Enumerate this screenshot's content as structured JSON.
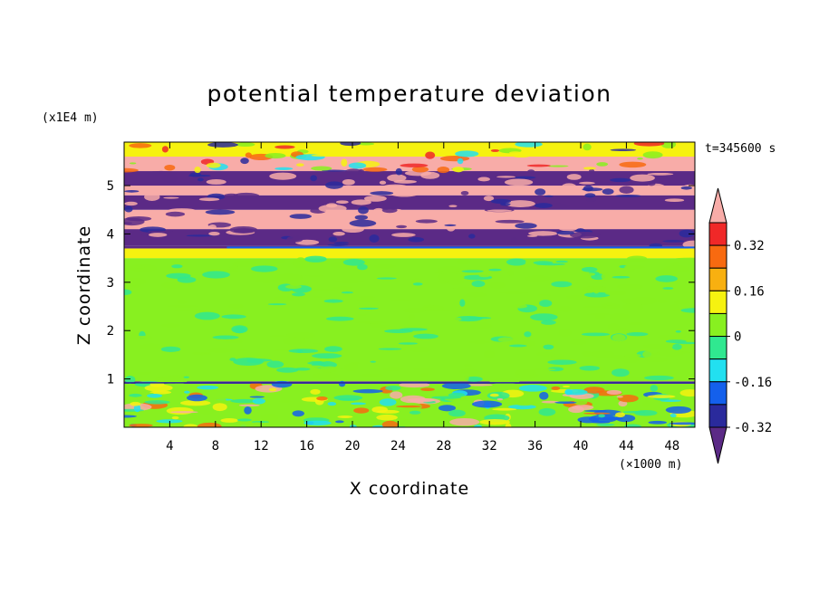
{
  "chart_data": {
    "type": "heatmap",
    "title": "potential temperature deviation",
    "xlabel": "X coordinate",
    "ylabel": "Z coordinate",
    "x_unit_label": "(×1000 m)",
    "y_unit_label": "(x1E4 m)",
    "time_label": "t=345600 s",
    "x_ticks": [
      "4",
      "8",
      "12",
      "16",
      "20",
      "24",
      "28",
      "32",
      "36",
      "40",
      "44",
      "48"
    ],
    "y_ticks": [
      "1",
      "2",
      "3",
      "4",
      "5"
    ],
    "xlim": [
      0,
      50
    ],
    "ylim": [
      0,
      5.9
    ],
    "colorbar": {
      "labels": [
        "0.32",
        "0.16",
        "0",
        "-0.16",
        "-0.32"
      ],
      "levels": [
        -0.4,
        -0.32,
        -0.24,
        -0.16,
        -0.08,
        0,
        0.08,
        0.16,
        0.24,
        0.32,
        0.4
      ],
      "colors": [
        "#5b2a86",
        "#2a2a9c",
        "#1460ec",
        "#22e0f0",
        "#30e890",
        "#88f020",
        "#f6f210",
        "#f8b010",
        "#f86a10",
        "#f02828",
        "#f8aca8"
      ],
      "extend": "both"
    },
    "bands": [
      {
        "z0": 0.0,
        "z1": 0.9,
        "value": 0.0
      },
      {
        "z0": 0.9,
        "z1": 0.95,
        "value": -0.36
      },
      {
        "z0": 0.95,
        "z1": 3.5,
        "value": 0.04
      },
      {
        "z0": 3.5,
        "z1": 3.7,
        "value": 0.1
      },
      {
        "z0": 3.7,
        "z1": 3.75,
        "value": -0.34
      },
      {
        "z0": 3.75,
        "z1": 4.1,
        "value": -0.44
      },
      {
        "z0": 4.1,
        "z1": 4.5,
        "value": 0.44
      },
      {
        "z0": 4.5,
        "z1": 4.8,
        "value": -0.44
      },
      {
        "z0": 4.8,
        "z1": 5.0,
        "value": 0.44
      },
      {
        "z0": 5.0,
        "z1": 5.3,
        "value": -0.44
      },
      {
        "z0": 5.3,
        "z1": 5.6,
        "value": 0.44
      },
      {
        "z0": 5.6,
        "z1": 5.9,
        "value": 0.1
      }
    ]
  },
  "colors": {
    "frame": "#000000",
    "background": "#ffffff"
  }
}
